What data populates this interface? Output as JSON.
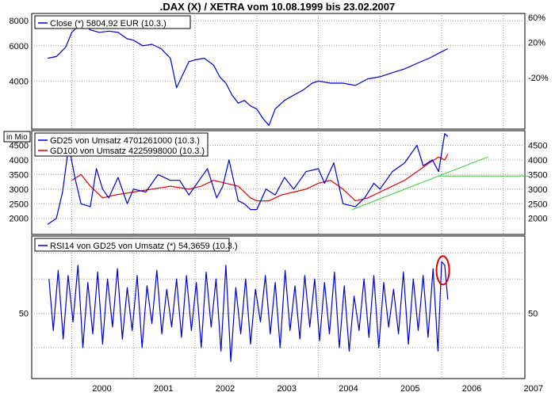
{
  "title": ".DAX (X) / XETRA vom 10.08.1999 bis 23.02.2007",
  "x_axis": {
    "labels": [
      "2000",
      "2001",
      "2002",
      "2003",
      "2004",
      "2005",
      "2006",
      "2007"
    ]
  },
  "colors": {
    "blue": "#0000cc",
    "red": "#dd0000",
    "green": "#33cc33",
    "grid": "#999999",
    "frame": "#000000"
  },
  "chart_data": [
    {
      "type": "line",
      "y_scale": "log",
      "left_ticks": [
        "8000",
        "6000",
        "4000"
      ],
      "right_ticks": [
        "60%",
        "20%",
        "-20%"
      ],
      "series": [
        {
          "name": "Close (*) 5804,92 EUR (10.3.)",
          "color": "#0000cc",
          "x": [
            1999.61,
            1999.75,
            1999.9,
            2000.0,
            2000.1,
            2000.2,
            2000.3,
            2000.45,
            2000.6,
            2000.75,
            2000.9,
            2001.0,
            2001.15,
            2001.3,
            2001.45,
            2001.6,
            2001.7,
            2001.8,
            2001.9,
            2002.0,
            2002.15,
            2002.3,
            2002.4,
            2002.5,
            2002.6,
            2002.7,
            2002.8,
            2002.9,
            2003.0,
            2003.1,
            2003.2,
            2003.3,
            2003.45,
            2003.6,
            2003.75,
            2003.9,
            2004.0,
            2004.2,
            2004.4,
            2004.6,
            2004.8,
            2005.0,
            2005.2,
            2005.4,
            2005.6,
            2005.8,
            2006.0,
            2006.1
          ],
          "values": [
            5200,
            5300,
            5900,
            7000,
            7500,
            7700,
            7200,
            7000,
            7100,
            7000,
            6500,
            6400,
            6000,
            6100,
            5800,
            5200,
            3700,
            4300,
            5000,
            5100,
            5200,
            4800,
            4200,
            3900,
            3400,
            3100,
            3200,
            3000,
            2900,
            2600,
            2400,
            2900,
            3200,
            3400,
            3600,
            3900,
            4000,
            3900,
            3900,
            3800,
            4100,
            4200,
            4400,
            4600,
            4900,
            5200,
            5600,
            5800
          ]
        }
      ]
    },
    {
      "type": "line",
      "unit_label": "in Mio",
      "y_ticks": [
        2000,
        2500,
        3000,
        3500,
        4000,
        4500
      ],
      "series": [
        {
          "name": "GD25 von Umsatz 4701261000 (10.3.)",
          "color": "#0000cc",
          "x": [
            1999.61,
            1999.75,
            1999.85,
            1999.95,
            2000.05,
            2000.15,
            2000.3,
            2000.4,
            2000.5,
            2000.6,
            2000.75,
            2000.9,
            2001.0,
            2001.2,
            2001.4,
            2001.6,
            2001.75,
            2001.9,
            2002.0,
            2002.2,
            2002.35,
            2002.45,
            2002.55,
            2002.7,
            2002.8,
            2002.9,
            2003.0,
            2003.15,
            2003.3,
            2003.45,
            2003.6,
            2003.8,
            2004.0,
            2004.1,
            2004.25,
            2004.4,
            2004.6,
            2004.75,
            2004.9,
            2005.0,
            2005.2,
            2005.4,
            2005.5,
            2005.6,
            2005.7,
            2005.85,
            2005.95,
            2006.05,
            2006.1
          ],
          "values": [
            1800,
            2000,
            2900,
            4500,
            3400,
            2500,
            2400,
            3700,
            3000,
            2700,
            3400,
            2500,
            3000,
            2900,
            3500,
            3300,
            3300,
            2800,
            3100,
            3700,
            2700,
            3100,
            4000,
            2600,
            2500,
            2300,
            2300,
            3000,
            2800,
            3400,
            3000,
            3600,
            3700,
            3200,
            3900,
            2500,
            2400,
            2700,
            3200,
            3000,
            3600,
            3900,
            4200,
            4500,
            3800,
            4000,
            3600,
            4900,
            4800
          ]
        },
        {
          "name": "GD100 von Umsatz 4225998000 (10.3.)",
          "color": "#dd0000",
          "x": [
            2000.0,
            2000.15,
            2000.3,
            2000.5,
            2000.7,
            2001.0,
            2001.3,
            2001.6,
            2001.9,
            2002.1,
            2002.3,
            2002.5,
            2002.7,
            2002.9,
            2003.0,
            2003.2,
            2003.4,
            2003.6,
            2003.8,
            2004.0,
            2004.2,
            2004.4,
            2004.6,
            2004.8,
            2005.0,
            2005.2,
            2005.4,
            2005.6,
            2005.8,
            2005.95,
            2006.05,
            2006.1
          ],
          "values": [
            3300,
            3500,
            3100,
            2700,
            2800,
            2900,
            3000,
            3100,
            3000,
            3100,
            3300,
            3200,
            3100,
            2700,
            2600,
            2600,
            2800,
            2900,
            3000,
            3200,
            3300,
            3000,
            2600,
            2700,
            2900,
            3100,
            3300,
            3600,
            3900,
            4100,
            4000,
            4200
          ]
        }
      ],
      "trendlines": [
        {
          "color": "#33cc33",
          "x": [
            2004.55,
            2005.95,
            2006.75
          ],
          "values": [
            2300,
            3450,
            4100
          ]
        },
        {
          "color": "#33cc33",
          "x": [
            2005.95,
            2007.4
          ],
          "values": [
            3450,
            3450
          ]
        }
      ]
    },
    {
      "type": "line",
      "y_ticks": [
        50
      ],
      "series": [
        {
          "name": "RSI14 von GD25 von Umsatz (*) 54,3659 (10.3.)",
          "color": "#0000cc",
          "x": [
            1999.63,
            1999.7,
            1999.78,
            1999.86,
            1999.94,
            2000.02,
            2000.1,
            2000.18,
            2000.26,
            2000.34,
            2000.42,
            2000.5,
            2000.58,
            2000.66,
            2000.74,
            2000.82,
            2000.9,
            2000.98,
            2001.06,
            2001.14,
            2001.22,
            2001.3,
            2001.38,
            2001.46,
            2001.54,
            2001.62,
            2001.7,
            2001.78,
            2001.86,
            2001.94,
            2002.02,
            2002.1,
            2002.18,
            2002.26,
            2002.34,
            2002.42,
            2002.5,
            2002.58,
            2002.66,
            2002.74,
            2002.82,
            2002.9,
            2002.98,
            2003.06,
            2003.14,
            2003.22,
            2003.3,
            2003.38,
            2003.46,
            2003.54,
            2003.62,
            2003.7,
            2003.78,
            2003.86,
            2003.94,
            2004.02,
            2004.1,
            2004.18,
            2004.26,
            2004.34,
            2004.42,
            2004.5,
            2004.58,
            2004.66,
            2004.74,
            2004.82,
            2004.9,
            2004.98,
            2005.06,
            2005.14,
            2005.22,
            2005.3,
            2005.38,
            2005.46,
            2005.54,
            2005.62,
            2005.7,
            2005.78,
            2005.86,
            2005.94,
            2006.0,
            2006.05,
            2006.1
          ],
          "values": [
            70,
            40,
            75,
            35,
            72,
            45,
            78,
            30,
            68,
            38,
            74,
            32,
            70,
            42,
            76,
            35,
            65,
            40,
            72,
            30,
            66,
            44,
            75,
            38,
            64,
            42,
            70,
            36,
            72,
            40,
            68,
            30,
            74,
            42,
            70,
            28,
            78,
            22,
            65,
            38,
            70,
            32,
            64,
            45,
            72,
            38,
            68,
            30,
            75,
            40,
            66,
            35,
            72,
            42,
            70,
            34,
            68,
            38,
            74,
            30,
            66,
            28,
            60,
            40,
            70,
            36,
            72,
            30,
            68,
            42,
            64,
            38,
            74,
            32,
            70,
            40,
            72,
            36,
            76,
            28,
            80,
            78,
            58
          ]
        }
      ],
      "annotations": [
        {
          "shape": "ellipse",
          "color": "#dd0000",
          "x": 2006.02,
          "value": 75
        }
      ]
    }
  ]
}
